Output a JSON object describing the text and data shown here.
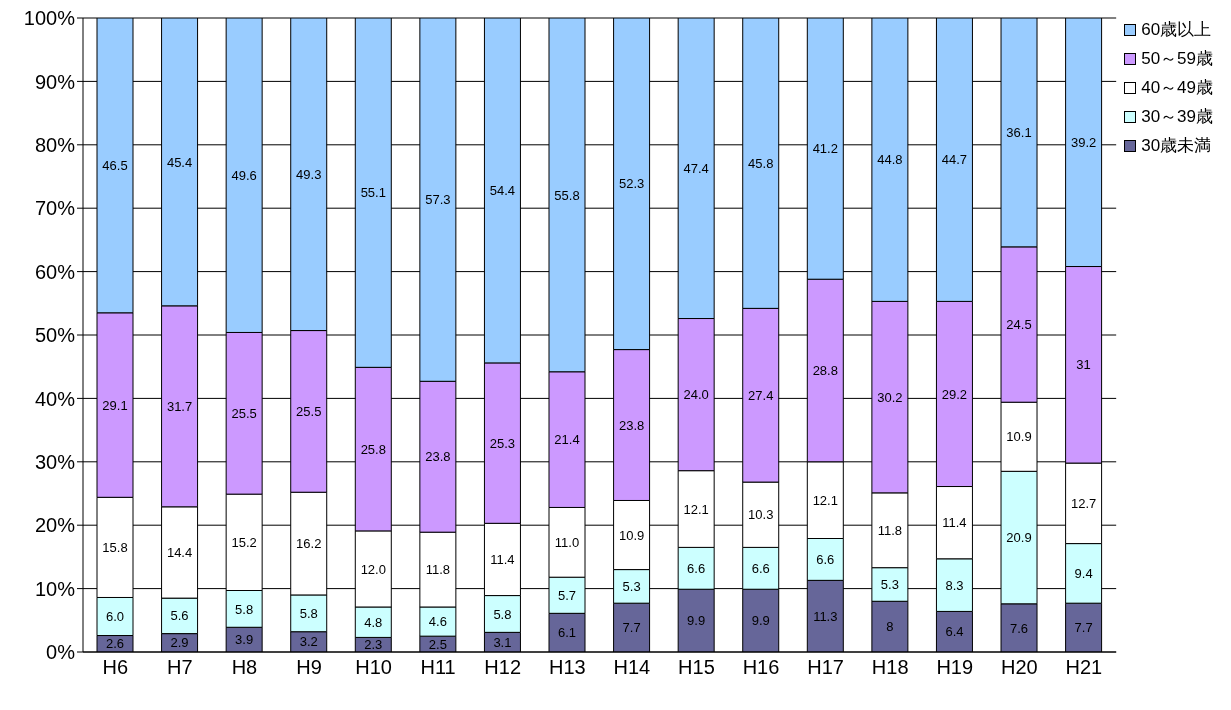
{
  "chart_data": {
    "type": "bar",
    "stacked": true,
    "categories": [
      "H6",
      "H7",
      "H8",
      "H9",
      "H10",
      "H11",
      "H12",
      "H13",
      "H14",
      "H15",
      "H16",
      "H17",
      "H18",
      "H19",
      "H20",
      "H21"
    ],
    "series": [
      {
        "name": "30歳未満",
        "color": "#666699",
        "values": [
          2.6,
          2.9,
          3.9,
          3.2,
          2.3,
          2.5,
          3.1,
          6.1,
          7.7,
          9.9,
          9.9,
          11.3,
          8,
          6.4,
          7.6,
          7.7
        ],
        "value_labels": [
          "2.6",
          "2.9",
          "3.9",
          "3.2",
          "2.3",
          "2.5",
          "3.1",
          "6.1",
          "7.7",
          "9.9",
          "9.9",
          "11.3",
          "8",
          "6.4",
          "7.6",
          "7.7"
        ]
      },
      {
        "name": "30～39歳",
        "color": "#ccffff",
        "values": [
          6.0,
          5.6,
          5.8,
          5.8,
          4.8,
          4.6,
          5.8,
          5.7,
          5.3,
          6.6,
          6.6,
          6.6,
          5.3,
          8.3,
          20.9,
          9.4
        ],
        "value_labels": [
          "6.0",
          "5.6",
          "5.8",
          "5.8",
          "4.8",
          "4.6",
          "5.8",
          "5.7",
          "5.3",
          "6.6",
          "6.6",
          "6.6",
          "5.3",
          "8.3",
          "20.9",
          "9.4"
        ]
      },
      {
        "name": "40～49歳",
        "color": "#ffffff",
        "values": [
          15.8,
          14.4,
          15.2,
          16.2,
          12.0,
          11.8,
          11.4,
          11.0,
          10.9,
          12.1,
          10.3,
          12.1,
          11.8,
          11.4,
          10.9,
          12.7
        ],
        "value_labels": [
          "15.8",
          "14.4",
          "15.2",
          "16.2",
          "12.0",
          "11.8",
          "11.4",
          "11.0",
          "10.9",
          "12.1",
          "10.3",
          "12.1",
          "11.8",
          "11.4",
          "10.9",
          "12.7"
        ]
      },
      {
        "name": "50～59歳",
        "color": "#cc99ff",
        "values": [
          29.1,
          31.7,
          25.5,
          25.5,
          25.8,
          23.8,
          25.3,
          21.4,
          23.8,
          24.0,
          27.4,
          28.8,
          30.2,
          29.2,
          24.5,
          31
        ],
        "value_labels": [
          "29.1",
          "31.7",
          "25.5",
          "25.5",
          "25.8",
          "23.8",
          "25.3",
          "21.4",
          "23.8",
          "24.0",
          "27.4",
          "28.8",
          "30.2",
          "29.2",
          "24.5",
          "31"
        ]
      },
      {
        "name": "60歳以上",
        "color": "#99ccff",
        "values": [
          46.5,
          45.4,
          49.6,
          49.3,
          55.1,
          57.3,
          54.4,
          55.8,
          52.3,
          47.4,
          45.8,
          41.2,
          44.8,
          44.7,
          36.1,
          39.2
        ],
        "value_labels": [
          "46.5",
          "45.4",
          "49.6",
          "49.3",
          "55.1",
          "57.3",
          "54.4",
          "55.8",
          "52.3",
          "47.4",
          "45.8",
          "41.2",
          "44.8",
          "44.7",
          "36.1",
          "39.2"
        ]
      }
    ],
    "ylim": [
      0,
      100
    ],
    "yticks": [
      {
        "value": 0,
        "label": "0%"
      },
      {
        "value": 10,
        "label": "10%"
      },
      {
        "value": 20,
        "label": "20%"
      },
      {
        "value": 30,
        "label": "30%"
      },
      {
        "value": 40,
        "label": "40%"
      },
      {
        "value": 50,
        "label": "50%"
      },
      {
        "value": 60,
        "label": "60%"
      },
      {
        "value": 70,
        "label": "70%"
      },
      {
        "value": 80,
        "label": "80%"
      },
      {
        "value": 90,
        "label": "90%"
      },
      {
        "value": 100,
        "label": "100%"
      }
    ],
    "grid": "y",
    "legend": "top right"
  }
}
